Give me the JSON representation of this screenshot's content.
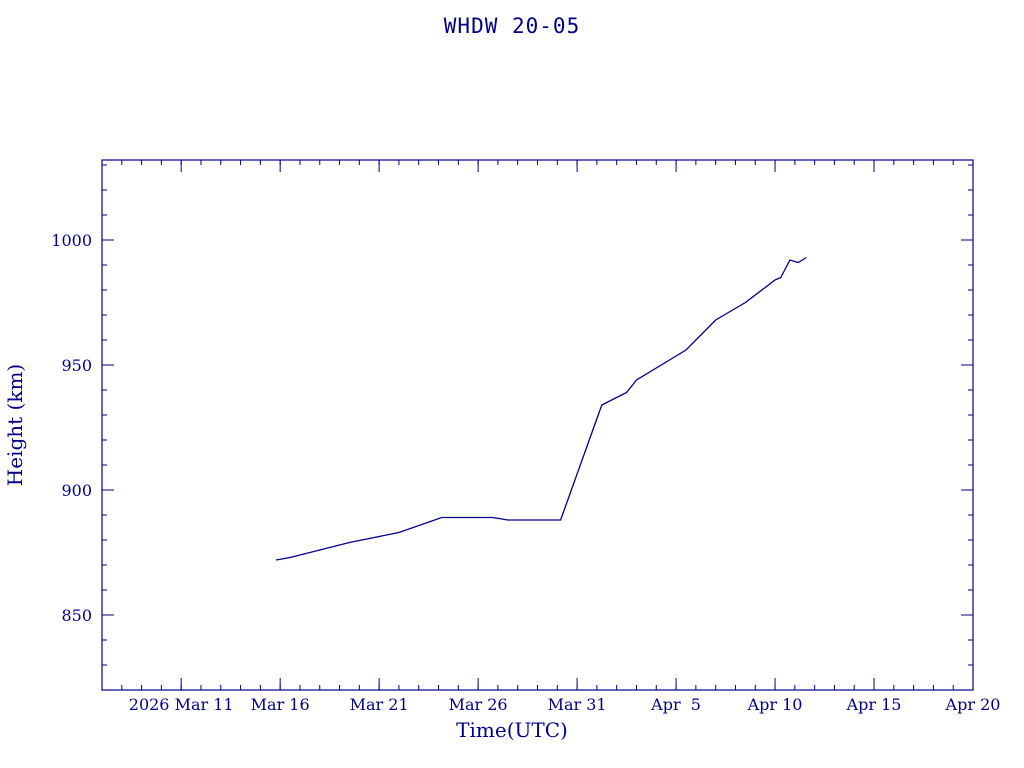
{
  "chart_data": {
    "type": "line",
    "title": "WHDW 20-05",
    "xlabel": "Time(UTC)",
    "ylabel": "Height (km)",
    "color": "#00008b",
    "grid": false,
    "x_tick_labels": [
      "2026 Mar 11",
      "Mar 16",
      "Mar 21",
      "Mar 26",
      "Mar 31",
      "Apr  5",
      "Apr 10",
      "Apr 15",
      "Apr 20"
    ],
    "x_ticks": [
      "2026-03-11",
      "2026-03-16",
      "2026-03-21",
      "2026-03-26",
      "2026-03-31",
      "2026-04-05",
      "2026-04-10",
      "2026-04-15",
      "2026-04-20"
    ],
    "y_tick_labels": [
      "850",
      "900",
      "950",
      "1000"
    ],
    "y_ticks": [
      850,
      900,
      950,
      1000
    ],
    "xlim": [
      "2026-03-07T00:00",
      "2026-04-20T00:00"
    ],
    "ylim": [
      820,
      1032
    ],
    "series": [
      {
        "points": [
          {
            "x": "2026-03-15T19:00",
            "y": 872
          },
          {
            "x": "2026-03-16T12:00",
            "y": 873
          },
          {
            "x": "2026-03-18T00:00",
            "y": 876
          },
          {
            "x": "2026-03-19T12:00",
            "y": 879
          },
          {
            "x": "2026-03-22T00:00",
            "y": 883
          },
          {
            "x": "2026-03-24T04:00",
            "y": 889
          },
          {
            "x": "2026-03-26T18:00",
            "y": 889
          },
          {
            "x": "2026-03-27T12:00",
            "y": 888
          },
          {
            "x": "2026-03-30T04:00",
            "y": 888
          },
          {
            "x": "2026-04-01T06:00",
            "y": 934
          },
          {
            "x": "2026-04-02T12:00",
            "y": 939
          },
          {
            "x": "2026-04-03T00:00",
            "y": 944
          },
          {
            "x": "2026-04-05T12:00",
            "y": 956
          },
          {
            "x": "2026-04-07T00:00",
            "y": 968
          },
          {
            "x": "2026-04-08T12:00",
            "y": 975
          },
          {
            "x": "2026-04-10T00:00",
            "y": 984
          },
          {
            "x": "2026-04-10T07:00",
            "y": 985
          },
          {
            "x": "2026-04-10T18:00",
            "y": 992
          },
          {
            "x": "2026-04-11T04:00",
            "y": 991
          },
          {
            "x": "2026-04-11T14:00",
            "y": 993
          }
        ]
      }
    ]
  }
}
